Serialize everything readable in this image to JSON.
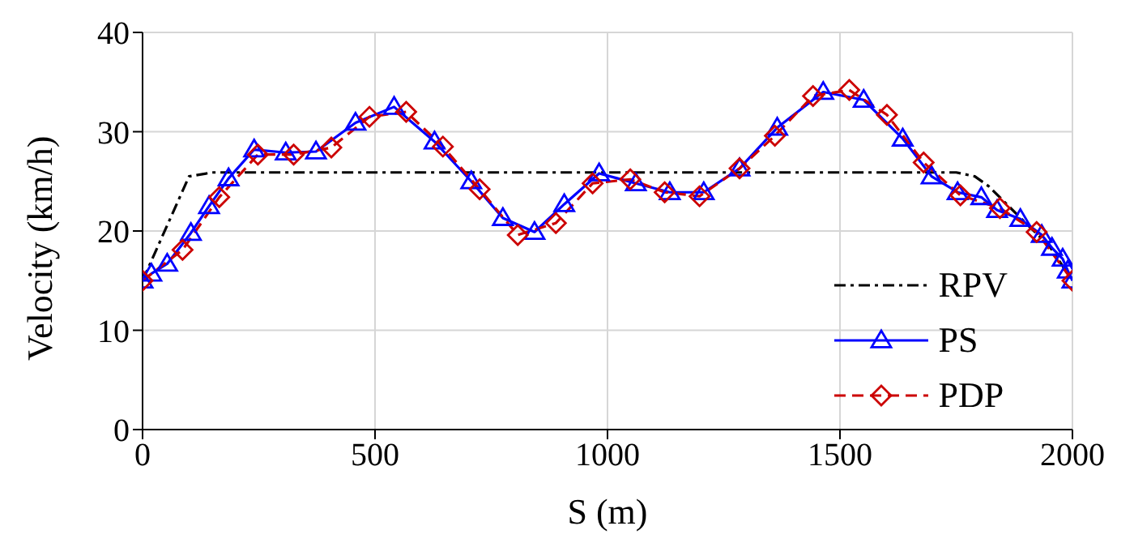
{
  "chart_data": {
    "type": "line",
    "xlabel": "S (m)",
    "ylabel": "Velocity (km/h)",
    "xlim": [
      0,
      2000
    ],
    "xticks": [
      0,
      500,
      1000,
      1500,
      2000
    ],
    "ylim": [
      0,
      40
    ],
    "yticks": [
      0,
      10,
      20,
      30,
      40
    ],
    "grid": true,
    "legend": "bottom right",
    "series": [
      {
        "name": "RPV",
        "color": "#000000",
        "marker": "none",
        "line_style": "dashdot",
        "x": [
          0,
          100,
          150,
          1750,
          1790,
          1820,
          1880,
          1950,
          2000
        ],
        "values": [
          15,
          25.5,
          25.9,
          25.9,
          25.5,
          24.5,
          21.7,
          18.5,
          15
        ]
      },
      {
        "name": "PS",
        "color": "#0000ff",
        "marker": "triangle",
        "line_style": "solid",
        "x": [
          0,
          19,
          53,
          104,
          143,
          185,
          240,
          308,
          373,
          458,
          541,
          628,
          707,
          775,
          843,
          907,
          982,
          1061,
          1134,
          1207,
          1284,
          1365,
          1464,
          1551,
          1635,
          1697,
          1753,
          1804,
          1838,
          1888,
          1934,
          1956,
          1979,
          1990,
          2000
        ],
        "values": [
          15,
          15.7,
          16.7,
          19.8,
          22.5,
          25.3,
          28.2,
          27.9,
          28,
          30.9,
          32.5,
          29,
          25,
          21.3,
          19.9,
          22.7,
          25.8,
          24.8,
          23.9,
          23.9,
          26.3,
          30.4,
          34,
          33.2,
          29.3,
          25.5,
          23.9,
          23.4,
          22.1,
          21.2,
          19.6,
          18.3,
          17.2,
          16,
          15
        ]
      },
      {
        "name": "PDP",
        "color": "#cc0000",
        "marker": "diamond",
        "line_style": "dashed",
        "x": [
          0,
          86,
          165,
          248,
          325,
          406,
          488,
          567,
          646,
          725,
          807,
          889,
          968,
          1049,
          1123,
          1198,
          1284,
          1360,
          1442,
          1520,
          1601,
          1680,
          1759,
          1844,
          1923,
          2000
        ],
        "values": [
          15,
          18.1,
          23.4,
          27.7,
          27.7,
          28.4,
          31.5,
          32,
          28.5,
          24.2,
          19.6,
          20.8,
          24.8,
          25.2,
          23.9,
          23.5,
          26.3,
          29.6,
          33.6,
          34.2,
          31.7,
          26.9,
          23.6,
          22.3,
          19.9,
          15
        ]
      }
    ]
  }
}
